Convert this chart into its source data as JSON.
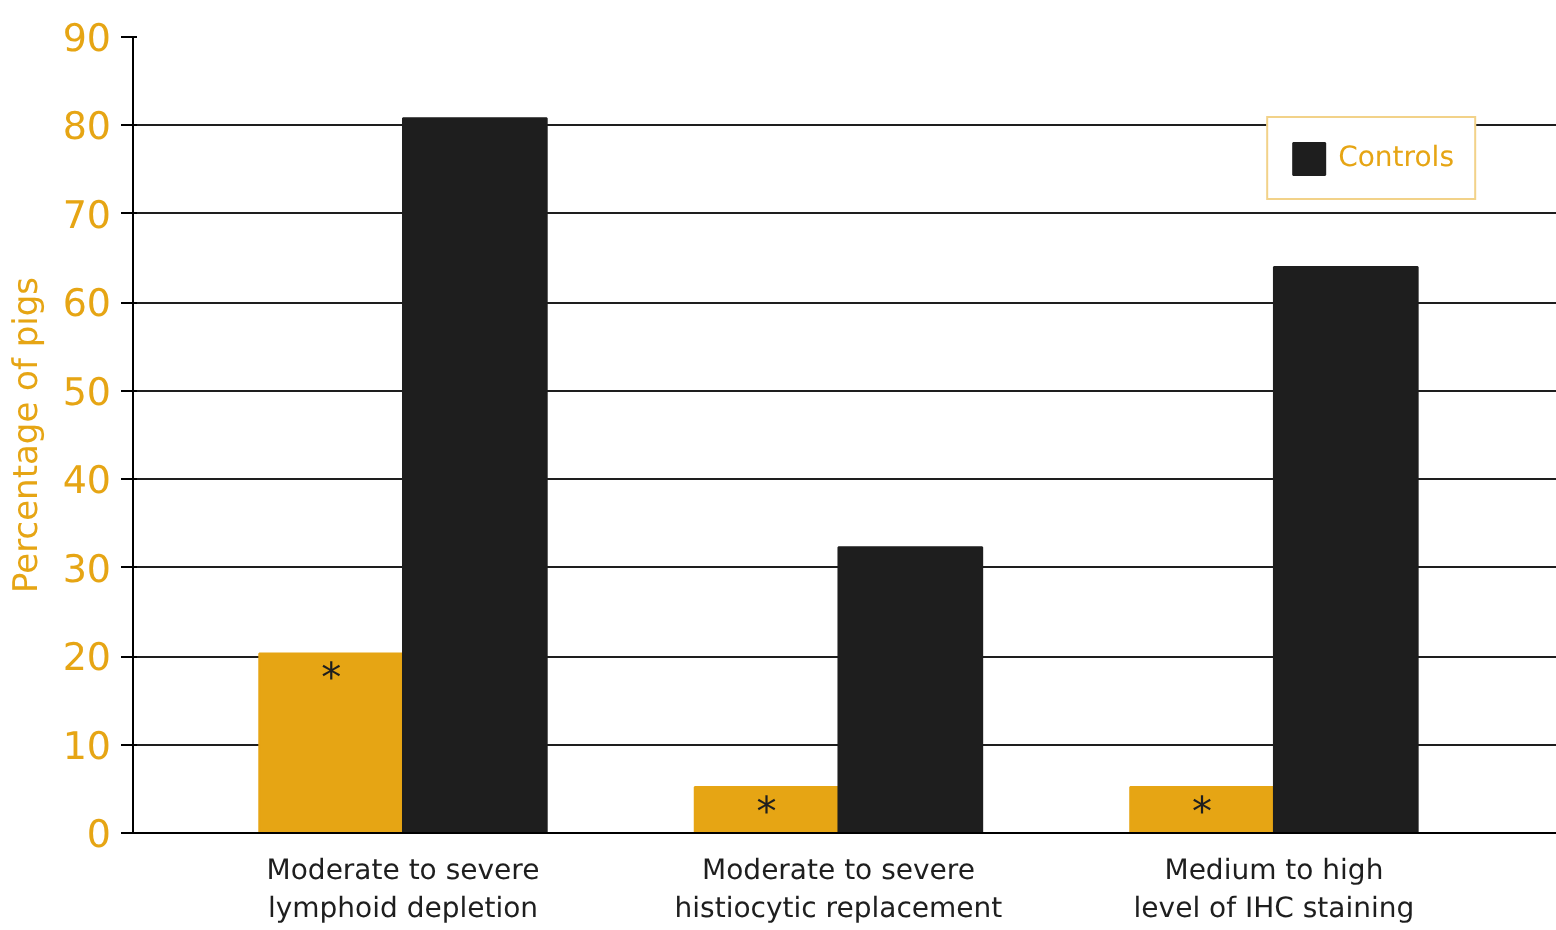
{
  "chart_data": {
    "type": "bar",
    "ylabel": "Percentage of pigs",
    "categories": [
      "Moderate to severe\nlymphoid depletion",
      "Moderate to severe\nhistiocytic replacement",
      "Medium to high\nlevel of IHC staining"
    ],
    "series": [
      {
        "color": "#e6a514",
        "values": [
          20.3,
          5.2,
          5.2
        ]
      },
      {
        "name": "Controls",
        "color": "#1e1e1e",
        "values": [
          80.8,
          32.3,
          64.0
        ]
      }
    ],
    "ylim": [
      0,
      90
    ],
    "yticks": [
      0,
      10,
      20,
      30,
      40,
      50,
      60,
      70,
      80,
      90
    ],
    "grid": "y",
    "legend": "top right",
    "annotations": [
      {
        "text": "*",
        "x": "Moderate to severe\nlymphoid depletion",
        "y": 20.3
      },
      {
        "text": "*",
        "x": "Moderate to severe\nhistiocytic replacement",
        "y": 5.2
      },
      {
        "text": "*",
        "x": "Medium to high\nlevel of IHC staining",
        "y": 5.2
      }
    ]
  }
}
